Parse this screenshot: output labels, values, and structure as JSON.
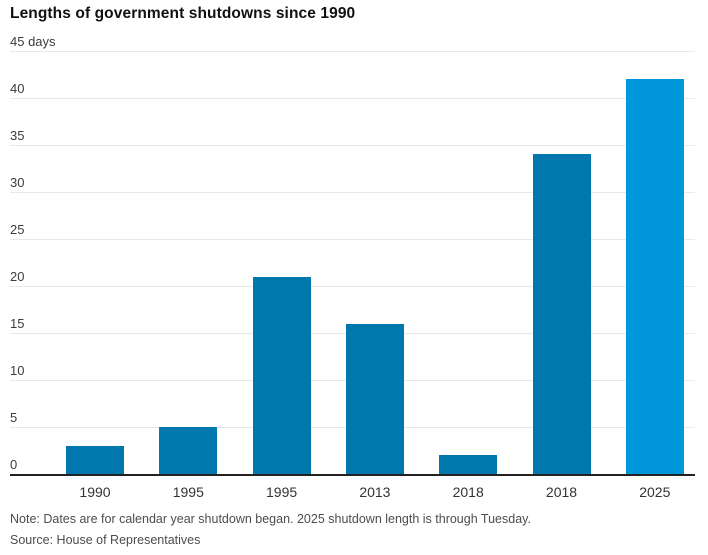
{
  "header": {
    "title": "Lengths of government shutdowns since 1990"
  },
  "chart_data": {
    "type": "bar",
    "title": "Lengths of government shutdowns since 1990",
    "categories": [
      "1990",
      "1995",
      "1995",
      "2013",
      "2018",
      "2018",
      "2025"
    ],
    "values": [
      3,
      5,
      21,
      16,
      2,
      34,
      42
    ],
    "bar_colors": [
      "#0077ad",
      "#0077ad",
      "#0077ad",
      "#0077ad",
      "#0077ad",
      "#0077ad",
      "#0098db"
    ],
    "xlabel": "",
    "ylabel": "days",
    "ylim": [
      0,
      45
    ],
    "yticks": [
      {
        "value": 0,
        "label": "0"
      },
      {
        "value": 5,
        "label": "5"
      },
      {
        "value": 10,
        "label": "10"
      },
      {
        "value": 15,
        "label": "15"
      },
      {
        "value": 20,
        "label": "20"
      },
      {
        "value": 25,
        "label": "25"
      },
      {
        "value": 30,
        "label": "30"
      },
      {
        "value": 35,
        "label": "35"
      },
      {
        "value": 40,
        "label": "40"
      },
      {
        "value": 45,
        "label": "45 days"
      }
    ],
    "grid": true,
    "legend": false
  },
  "footer": {
    "note": "Note: Dates are for calendar year shutdown began. 2025 shutdown length is through Tuesday.",
    "source": "Source: House of Representatives"
  },
  "colors": {
    "bar_default": "#0077ad",
    "bar_highlight": "#0098db",
    "grid": "#e9e9e9",
    "axis": "#222222",
    "title_text": "#111111",
    "tick_text": "#3c3c3c",
    "muted_text": "#4d4d4d"
  }
}
